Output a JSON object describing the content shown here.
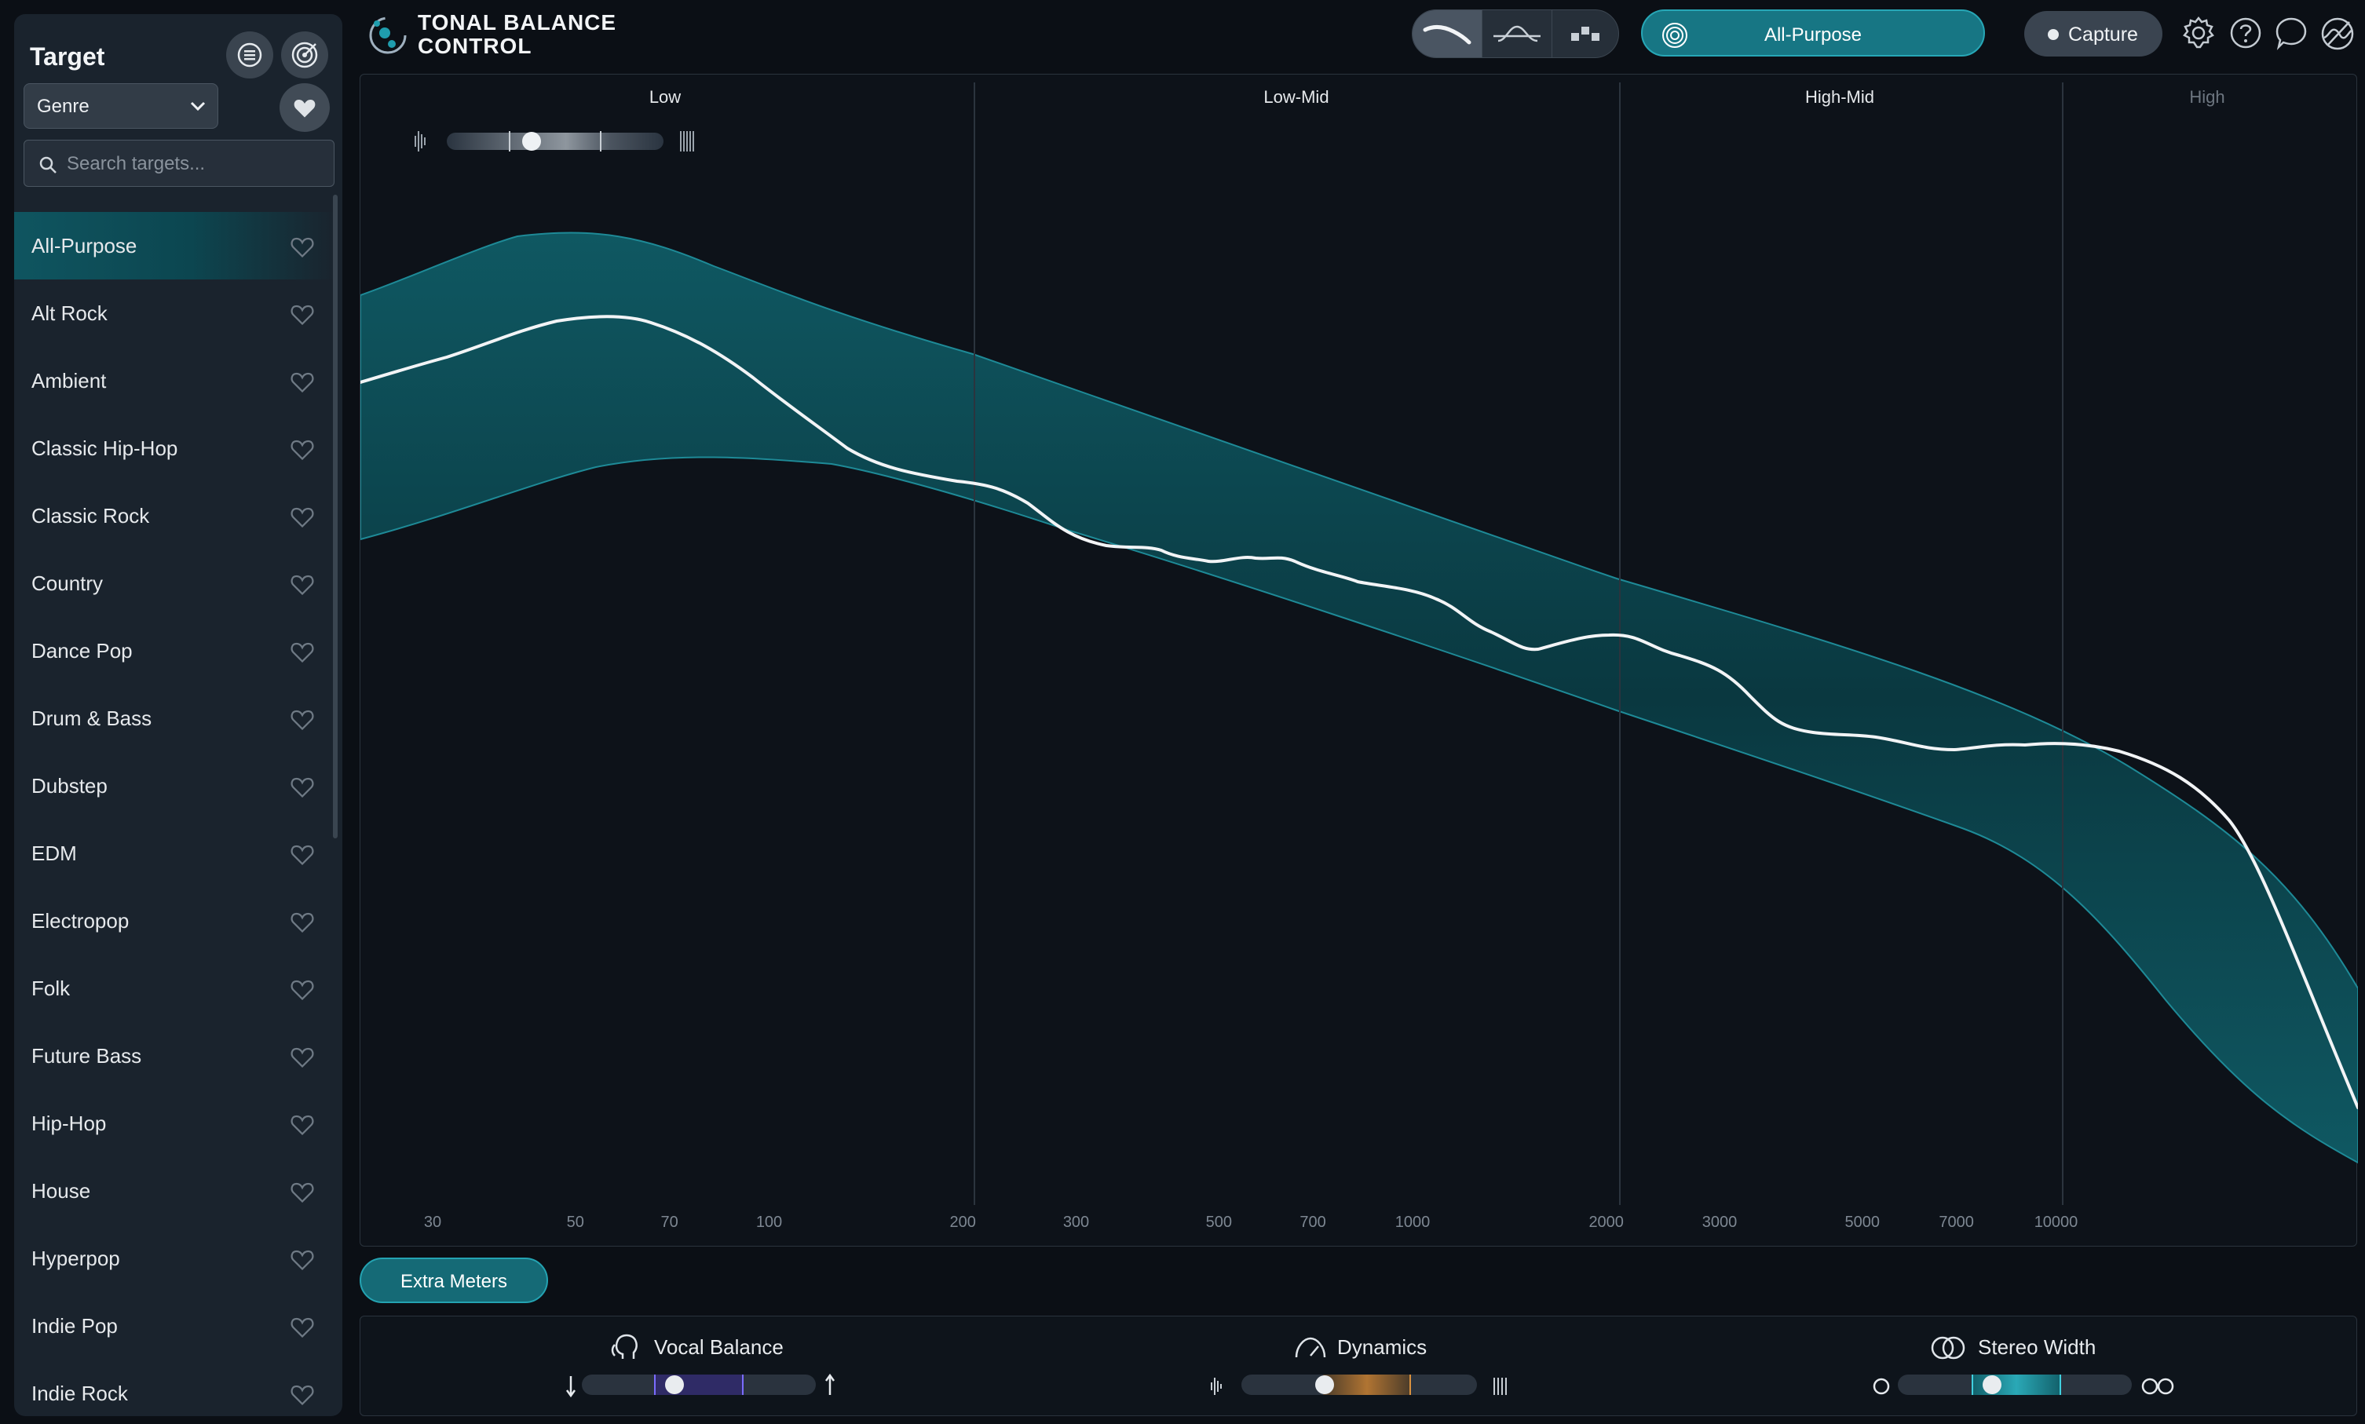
{
  "sidebar": {
    "title": "Target",
    "genre_select": "Genre",
    "search_placeholder": "Search targets...",
    "items": [
      {
        "label": "All-Purpose",
        "active": true
      },
      {
        "label": "Alt Rock"
      },
      {
        "label": "Ambient"
      },
      {
        "label": "Classic Hip-Hop"
      },
      {
        "label": "Classic Rock"
      },
      {
        "label": "Country"
      },
      {
        "label": "Dance Pop"
      },
      {
        "label": "Drum & Bass"
      },
      {
        "label": "Dubstep"
      },
      {
        "label": "EDM"
      },
      {
        "label": "Electropop"
      },
      {
        "label": "Folk"
      },
      {
        "label": "Future Bass"
      },
      {
        "label": "Hip-Hop"
      },
      {
        "label": "House"
      },
      {
        "label": "Hyperpop"
      },
      {
        "label": "Indie Pop"
      },
      {
        "label": "Indie Rock"
      }
    ]
  },
  "header": {
    "app_title_line1": "TONAL BALANCE",
    "app_title_line2": "CONTROL",
    "view_modes": [
      "broadband-view-icon",
      "crest-factor-view-icon",
      "bars-view-icon"
    ],
    "selected_view": 0,
    "target_name": "All-Purpose",
    "capture_label": "Capture",
    "icons": [
      "settings-icon",
      "help-icon",
      "speech-bubble-icon",
      "eq-link-icon"
    ]
  },
  "graph": {
    "bands": [
      "Low",
      "Low-Mid",
      "High-Mid",
      "High"
    ],
    "freq_ticks": [
      "30",
      "50",
      "70",
      "100",
      "200",
      "300",
      "500",
      "700",
      "1000",
      "2000",
      "3000",
      "5000",
      "7000",
      "10000"
    ],
    "smoothing_level": 0.4
  },
  "bottom": {
    "extra_meters_label": "Extra Meters",
    "meters": [
      {
        "title": "Vocal Balance",
        "icon": "vocal-head-icon",
        "value": 0.4
      },
      {
        "title": "Dynamics",
        "icon": "gauge-icon",
        "value": 0.35
      },
      {
        "title": "Stereo Width",
        "icon": "stereo-circles-icon",
        "value": 0.4
      }
    ]
  },
  "colors": {
    "accent": "#1b8b98",
    "band_fill": "#0f5a64",
    "curve": "#f2f4f6"
  }
}
